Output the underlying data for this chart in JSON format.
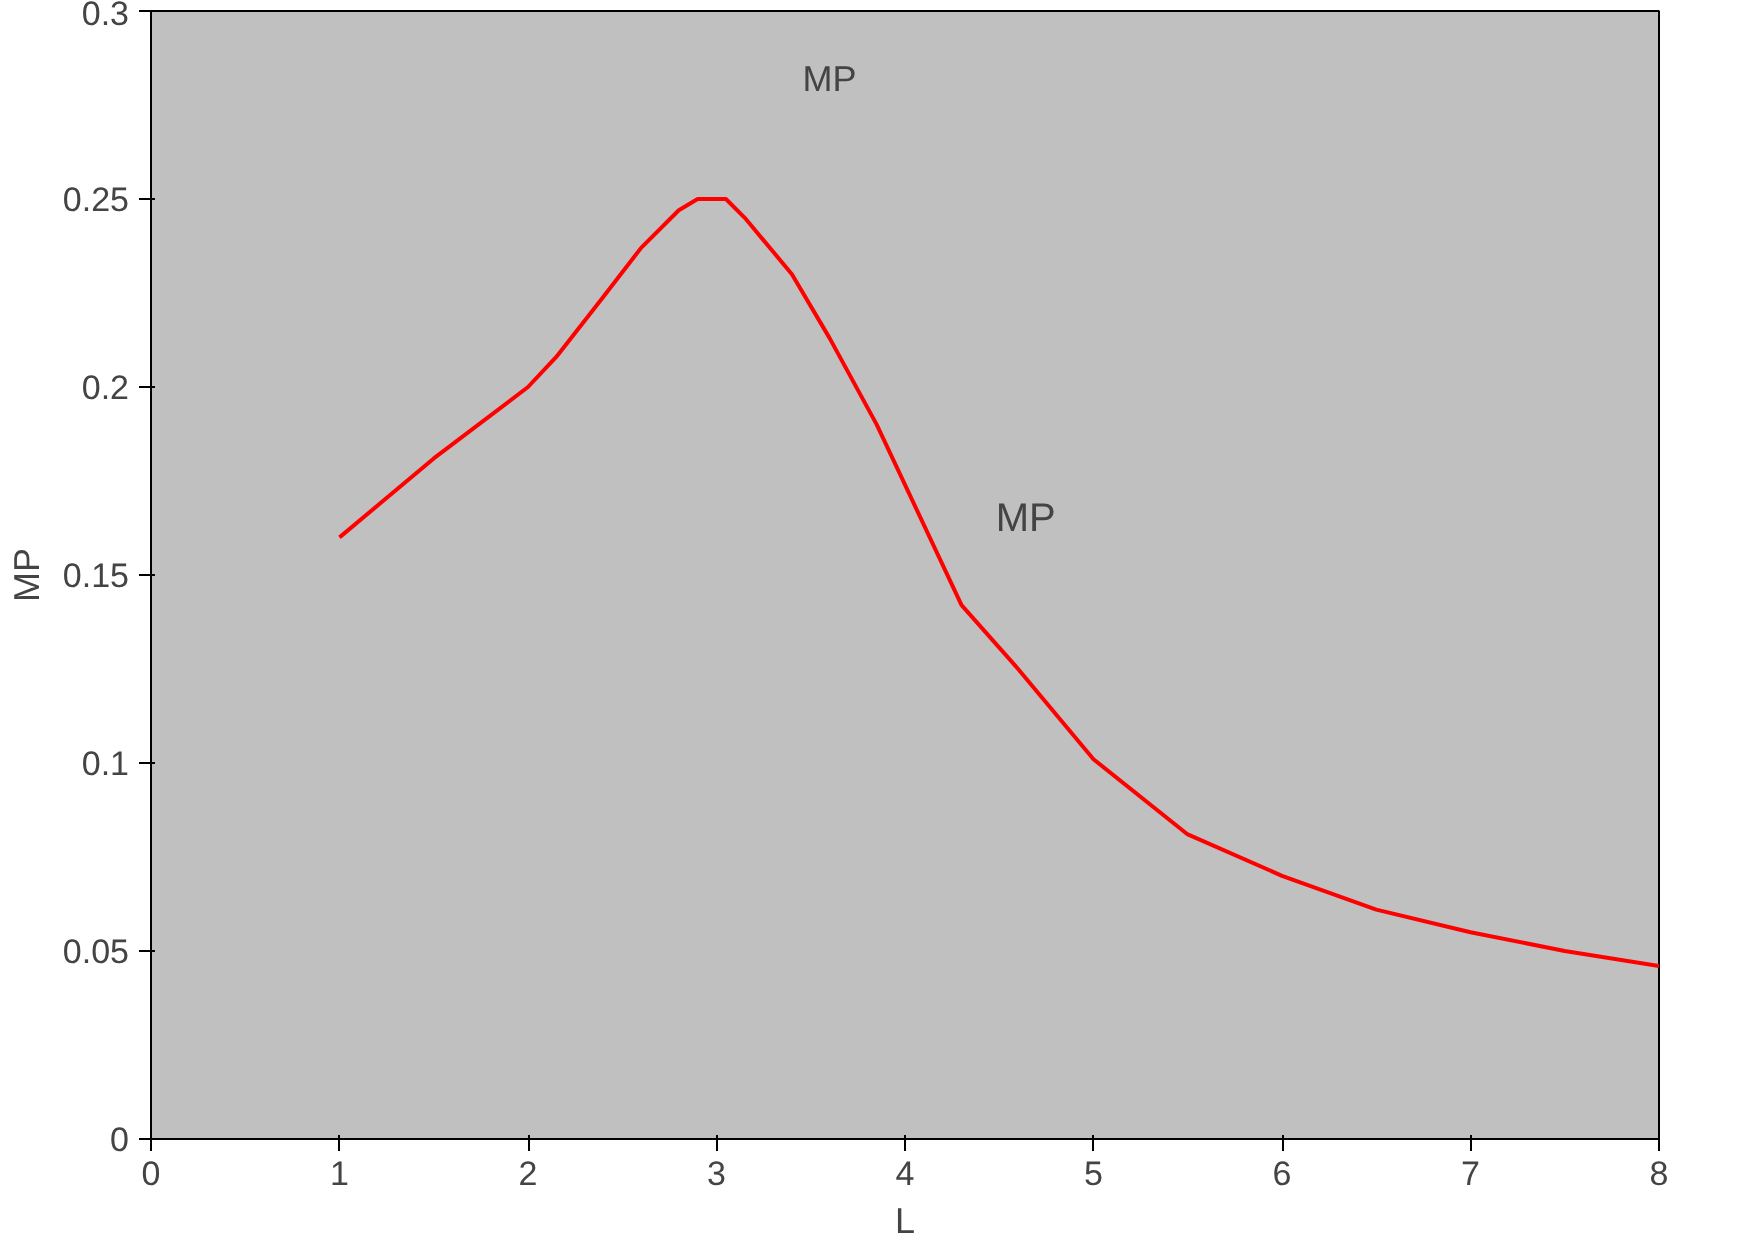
{
  "chart_data": {
    "type": "line",
    "xlabel": "L",
    "ylabel": "MP",
    "annotations": [
      "MP",
      "MP"
    ],
    "x": [
      1,
      1.5,
      2,
      2.15,
      2.4,
      2.6,
      2.8,
      2.9,
      3.05,
      3.15,
      3.4,
      3.6,
      3.85,
      4.3,
      4.6,
      5,
      5.5,
      6,
      6.5,
      7,
      7.5,
      8
    ],
    "series": [
      {
        "color": "#ff0000",
        "values": [
          0.16,
          0.181,
          0.2,
          0.208,
          0.224,
          0.237,
          0.247,
          0.25,
          0.25,
          0.245,
          0.23,
          0.213,
          0.19,
          0.142,
          0.125,
          0.101,
          0.081,
          0.07,
          0.061,
          0.055,
          0.05,
          0.046
        ]
      }
    ],
    "xlim": [
      0,
      8
    ],
    "ylim": [
      0,
      0.3
    ],
    "xticks": [
      0,
      1,
      2,
      3,
      4,
      5,
      6,
      7,
      8
    ],
    "yticks": [
      0,
      0.05,
      0.1,
      0.15,
      0.2,
      0.25,
      0.3
    ],
    "grid": false,
    "marker": "none",
    "line_style": "solid"
  }
}
